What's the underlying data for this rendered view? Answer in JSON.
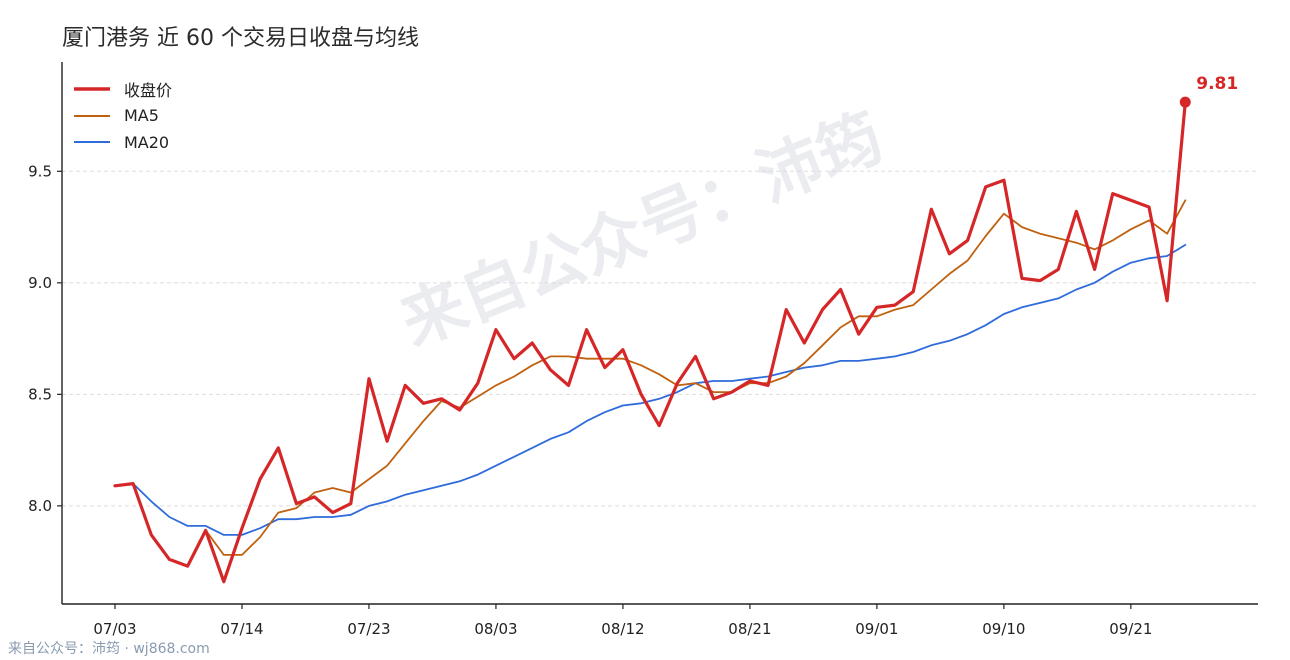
{
  "title": "厦门港务 近 60 个交易日收盘与均线",
  "watermark": "来自公众号：沛筠",
  "footer": "来自公众号：沛筠 · wj868.com",
  "colors": {
    "close": "#d62728",
    "ma5": "#c0610f",
    "ma20": "#2f6bdb",
    "grid": "#dddddd"
  },
  "chart_data": {
    "type": "line",
    "title": "厦门港务 近 60 个交易日收盘与均线",
    "xlabel": "",
    "ylabel": "",
    "ylim": [
      7.56,
      9.99
    ],
    "yticks": [
      8.0,
      8.5,
      9.0,
      9.5
    ],
    "ytick_labels": [
      "8.0",
      "8.5",
      "9.0",
      "9.5"
    ],
    "xtick_labels": [
      "07/03",
      "07/14",
      "07/23",
      "08/03",
      "08/12",
      "08/21",
      "09/01",
      "09/10",
      "09/21"
    ],
    "xtick_index": [
      0,
      7,
      14,
      21,
      28,
      35,
      42,
      49,
      56
    ],
    "grid": "horizontal dashed",
    "legend_position": "top-left",
    "last_value_label": "9.81",
    "series": [
      {
        "name": "收盘价",
        "values": [
          8.09,
          8.1,
          7.87,
          7.76,
          7.73,
          7.89,
          7.66,
          7.9,
          8.12,
          8.26,
          8.01,
          8.04,
          7.97,
          8.01,
          8.57,
          8.29,
          8.54,
          8.46,
          8.48,
          8.43,
          8.55,
          8.79,
          8.66,
          8.73,
          8.61,
          8.54,
          8.79,
          8.62,
          8.7,
          8.5,
          8.36,
          8.55,
          8.67,
          8.48,
          8.51,
          8.56,
          8.54,
          8.88,
          8.73,
          8.88,
          8.97,
          8.77,
          8.89,
          8.9,
          8.96,
          9.33,
          9.13,
          9.19,
          9.43,
          9.46,
          9.02,
          9.01,
          9.06,
          9.32,
          9.06,
          9.4,
          9.37,
          9.34,
          8.92,
          9.81
        ]
      },
      {
        "name": "MA5",
        "values": [
          8.09,
          8.1,
          7.87,
          7.76,
          7.73,
          7.89,
          7.78,
          7.78,
          7.86,
          7.97,
          7.99,
          8.06,
          8.08,
          8.06,
          8.12,
          8.18,
          8.28,
          8.38,
          8.47,
          8.44,
          8.49,
          8.54,
          8.58,
          8.63,
          8.67,
          8.67,
          8.66,
          8.66,
          8.66,
          8.63,
          8.59,
          8.54,
          8.55,
          8.51,
          8.51,
          8.55,
          8.55,
          8.58,
          8.64,
          8.72,
          8.8,
          8.85,
          8.85,
          8.88,
          8.9,
          8.97,
          9.04,
          9.1,
          9.21,
          9.31,
          9.25,
          9.22,
          9.2,
          9.18,
          9.15,
          9.19,
          9.24,
          9.28,
          9.22,
          9.37
        ]
      },
      {
        "name": "MA20",
        "values": [
          8.09,
          8.1,
          8.02,
          7.95,
          7.91,
          7.91,
          7.87,
          7.87,
          7.9,
          7.94,
          7.94,
          7.95,
          7.95,
          7.96,
          8.0,
          8.02,
          8.05,
          8.07,
          8.09,
          8.11,
          8.14,
          8.18,
          8.22,
          8.26,
          8.3,
          8.33,
          8.38,
          8.42,
          8.45,
          8.46,
          8.48,
          8.51,
          8.55,
          8.56,
          8.56,
          8.57,
          8.58,
          8.6,
          8.62,
          8.63,
          8.65,
          8.65,
          8.66,
          8.67,
          8.69,
          8.72,
          8.74,
          8.77,
          8.81,
          8.86,
          8.89,
          8.91,
          8.93,
          8.97,
          9.0,
          9.05,
          9.09,
          9.11,
          9.12,
          9.17
        ]
      }
    ]
  }
}
